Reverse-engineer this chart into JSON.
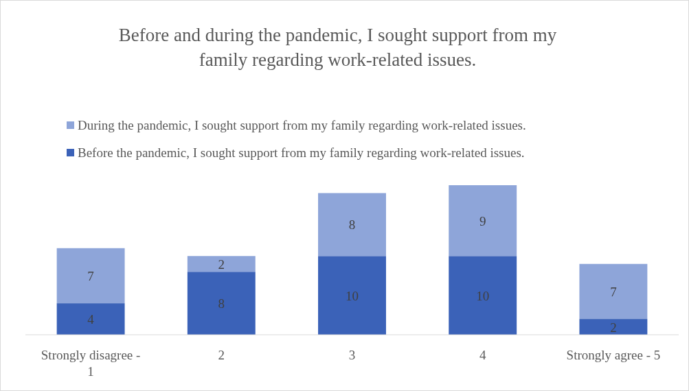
{
  "chart_data": {
    "type": "bar",
    "title": "Before and during the pandemic, I sought support from my family regarding work-related issues.",
    "categories": [
      "Strongly disagree - 1",
      "2",
      "3",
      "4",
      "Strongly agree - 5"
    ],
    "stacked": true,
    "data_labels": true,
    "legend": "top",
    "series": [
      {
        "name": "Before the pandemic, I sought support from my family regarding work-related issues.",
        "color": "#3b62b8",
        "values": [
          4,
          8,
          10,
          10,
          2
        ]
      },
      {
        "name": "During the pandemic, I sought support from my family regarding work-related issues.",
        "color": "#8ea5d9",
        "values": [
          7,
          2,
          8,
          9,
          7
        ]
      }
    ]
  }
}
